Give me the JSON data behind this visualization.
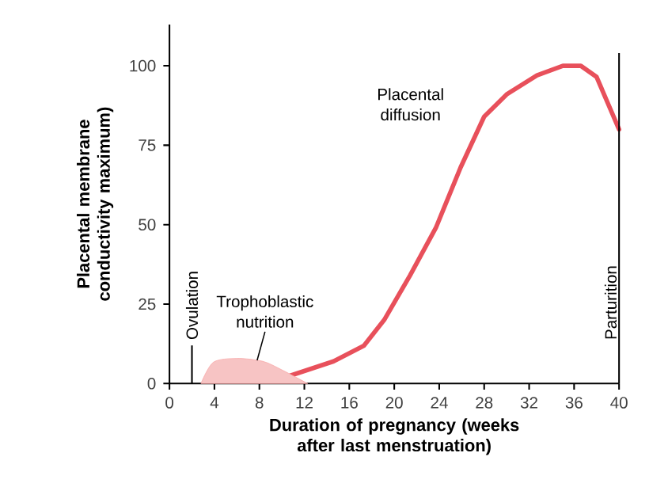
{
  "chart_data": {
    "type": "line",
    "xlabel": "Duration of pregnancy (weeks after last menstruation)",
    "ylabel": "Placental membrane conductivity maximum)",
    "xlim": [
      0,
      40
    ],
    "ylim": [
      0,
      113
    ],
    "xticks": [
      0,
      4,
      8,
      12,
      16,
      20,
      24,
      28,
      32,
      36,
      40
    ],
    "yticks": [
      0,
      25,
      50,
      75,
      100
    ],
    "grid": false,
    "marker": "none",
    "line_style": "solid",
    "series": [
      {
        "color": "#e8505b",
        "x": [
          10.5,
          14.6,
          17.3,
          19.1,
          21.4,
          23.7,
          25.9,
          28,
          30,
          32.7,
          35,
          36.6,
          38,
          40
        ],
        "values": [
          2.2,
          7,
          11.9,
          20,
          34,
          49,
          68,
          84,
          91,
          97,
          100,
          100,
          96.5,
          80
        ]
      },
      {
        "type": "area",
        "color": "#f7c4c4",
        "x": [
          2.8,
          3.9,
          6,
          8.3,
          10,
          12.3
        ],
        "values": [
          0,
          6.7,
          7.9,
          7,
          4.3,
          0
        ]
      }
    ],
    "ref_lines": [
      {
        "axis": "x",
        "value": 40,
        "label": "Parturition",
        "color": "#000000"
      },
      {
        "axis": "x",
        "value": 2,
        "label": "Ovulation",
        "color": "#000000"
      }
    ],
    "annotations": [
      {
        "text": "Placental diffusion",
        "x": 27.5,
        "y": 82
      },
      {
        "text": "Trophoblastic nutrition",
        "x": 7.8,
        "y": 7.3
      }
    ]
  }
}
